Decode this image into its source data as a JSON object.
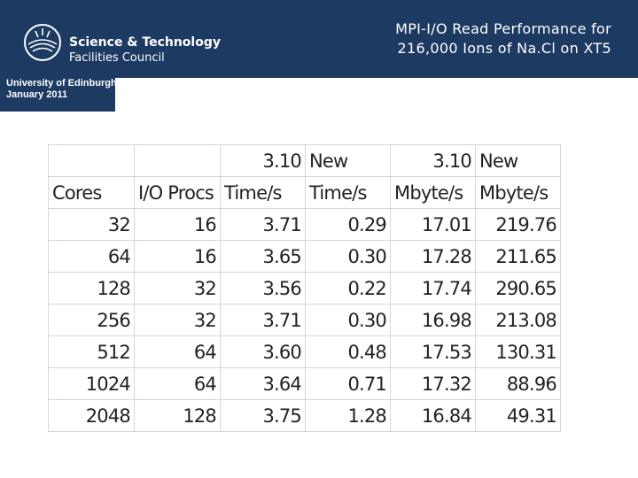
{
  "header": {
    "logo_line1": "Science & Technology",
    "logo_line2": "Facilities Council",
    "title_line1": "MPI-I/O Read Performance for",
    "title_line2": "216,000 Ions of Na.Cl on XT5",
    "affiliation_line1": "University of Edinburgh",
    "affiliation_line2": "January 2011"
  },
  "table": {
    "group_row": [
      "",
      "",
      "3.10",
      "New",
      "3.10",
      "New"
    ],
    "headers": [
      "Cores",
      "I/O Procs",
      "Time/s",
      "Time/s",
      "Mbyte/s",
      "Mbyte/s"
    ],
    "rows": [
      [
        "32",
        "16",
        "3.71",
        "0.29",
        "17.01",
        "219.76"
      ],
      [
        "64",
        "16",
        "3.65",
        "0.30",
        "17.28",
        "211.65"
      ],
      [
        "128",
        "32",
        "3.56",
        "0.22",
        "17.74",
        "290.65"
      ],
      [
        "256",
        "32",
        "3.71",
        "0.30",
        "16.98",
        "213.08"
      ],
      [
        "512",
        "64",
        "3.60",
        "0.48",
        "17.53",
        "130.31"
      ],
      [
        "1024",
        "64",
        "3.64",
        "0.71",
        "17.32",
        "88.96"
      ],
      [
        "2048",
        "128",
        "3.75",
        "1.28",
        "16.84",
        "49.31"
      ]
    ]
  }
}
